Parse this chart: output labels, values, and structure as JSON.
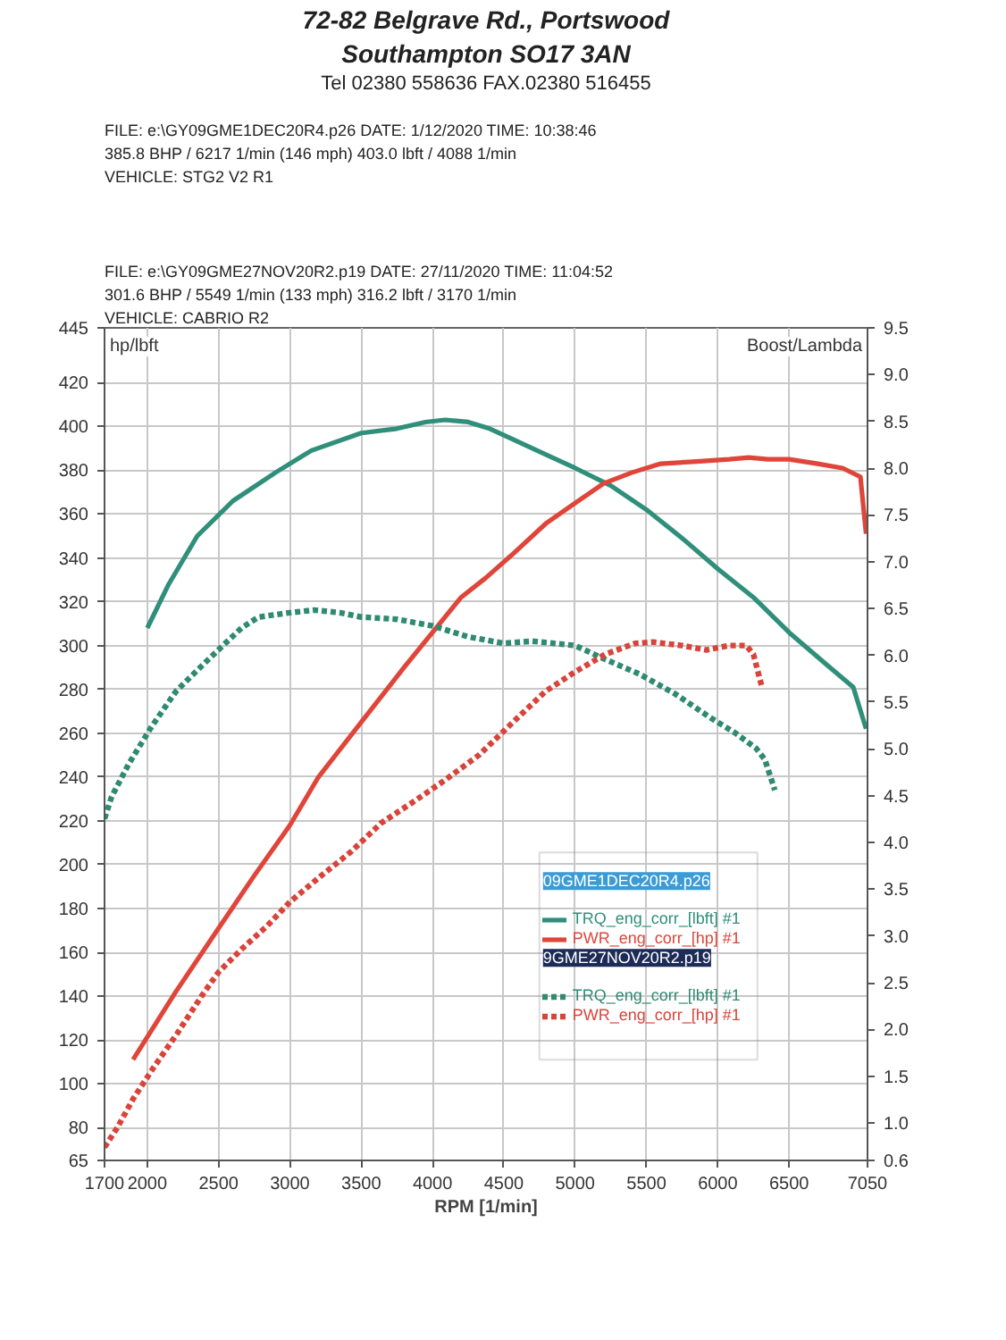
{
  "chart_data": {
    "type": "line",
    "xlabel": "RPM [1/min]",
    "ylabel": "hp/lbft",
    "y2label": "Boost/Lambda",
    "annotations": [
      "72-82 Belgrave Rd., Portswood",
      "Southampton SO17 3AN",
      "Tel 02380 558636 FAX.02380 516455",
      "FILE: e:\\GY09GME1DEC20R4.p26 DATE: 1/12/2020 TIME: 10:38:46",
      "385.8 BHP / 6217 1/min (146 mph) 403.0 lbft / 4088 1/min",
      "VEHICLE: STG2 V2 R1",
      "FILE: e:\\GY09GME27NOV20R2.p19 DATE: 27/11/2020 TIME: 11:04:52",
      "301.6 BHP / 5549 1/min (133 mph) 316.2 lbft / 3170 1/min",
      "VEHICLE: CABRIO R2",
      "09GME1DEC20R4.p26",
      "9GME27NOV20R2.p19"
    ],
    "xlim": [
      1700,
      7050
    ],
    "xticks": [
      1700,
      2000,
      2500,
      3000,
      3500,
      4000,
      4500,
      5000,
      5500,
      6000,
      6500,
      7050
    ],
    "ylim": [
      65,
      445
    ],
    "yticks": [
      65,
      80,
      100,
      120,
      140,
      160,
      180,
      200,
      220,
      240,
      260,
      280,
      300,
      320,
      340,
      360,
      380,
      400,
      420,
      445
    ],
    "y2lim": [
      0.6,
      9.5
    ],
    "y2ticks": [
      0.6,
      {
        "value": 1,
        "label": "1.0"
      },
      1.5,
      {
        "value": 2,
        "label": "2.0"
      },
      2.5,
      {
        "value": 3,
        "label": "3.0"
      },
      3.5,
      {
        "value": 4,
        "label": "4.0"
      },
      4.5,
      {
        "value": 5,
        "label": "5.0"
      },
      5.5,
      {
        "value": 6,
        "label": "6.0"
      },
      6.5,
      {
        "value": 7,
        "label": "7.0"
      },
      7.5,
      {
        "value": 8,
        "label": "8.0"
      },
      8.5,
      {
        "value": 9,
        "label": "9.0"
      },
      9.5
    ],
    "grid": true,
    "legend": "bottom right",
    "series": [
      {
        "name": "TRQ_eng_corr_[lbft] #1",
        "color": "#2f8f7a",
        "line_style": "solid",
        "x": [
          2000,
          2150,
          2350,
          2600,
          2900,
          3150,
          3500,
          3750,
          3950,
          4088,
          4250,
          4400,
          4500,
          4700,
          5000,
          5250,
          5500,
          5750,
          6000,
          6250,
          6500,
          6750,
          6950,
          7040
        ],
        "values": [
          308,
          328,
          350,
          366,
          379,
          389,
          397,
          399,
          402,
          403.0,
          402,
          399,
          396,
          390,
          381,
          373,
          362,
          349,
          335,
          322,
          306,
          292,
          281,
          262
        ]
      },
      {
        "name": "PWR_eng_corr_[hp] #1",
        "color": "#e0453a",
        "line_style": "solid",
        "x": [
          1900,
          2200,
          2500,
          2750,
          3000,
          3200,
          3500,
          3800,
          4000,
          4200,
          4375,
          4550,
          4800,
          5000,
          5200,
          5400,
          5600,
          5850,
          6080,
          6217,
          6350,
          6500,
          6700,
          6875,
          7000,
          7040
        ],
        "values": [
          111,
          142,
          171,
          195,
          218,
          240,
          265,
          290,
          306,
          322,
          331,
          341,
          356,
          365,
          374,
          379,
          383,
          384,
          385,
          385.8,
          385,
          385,
          383,
          381,
          377,
          351
        ]
      },
      {
        "name": "TRQ_eng_corr_[lbft] #1",
        "color": "#2f8a70",
        "line_style": "dotted",
        "x": [
          1700,
          1750,
          1870,
          2030,
          2200,
          2370,
          2530,
          2660,
          2780,
          3000,
          3170,
          3350,
          3500,
          3750,
          4000,
          4250,
          4500,
          4700,
          5000,
          5200,
          5450,
          5700,
          5950,
          6125,
          6270,
          6330,
          6400
        ],
        "values": [
          221,
          231,
          246,
          263,
          279,
          290,
          300,
          308,
          313,
          315,
          316.2,
          315,
          313,
          312,
          309,
          304,
          301,
          302,
          300,
          294,
          287,
          278,
          267,
          260,
          253,
          248,
          234
        ]
      },
      {
        "name": "PWR_eng_corr_[hp] #1",
        "color": "#d9443a",
        "line_style": "dotted",
        "x": [
          1700,
          1790,
          1900,
          2040,
          2210,
          2380,
          2500,
          2670,
          2840,
          3000,
          3220,
          3430,
          3640,
          3850,
          4075,
          4325,
          4580,
          4790,
          5000,
          5210,
          5420,
          5549,
          5750,
          5920,
          6080,
          6200,
          6250,
          6310
        ],
        "values": [
          71,
          80,
          93,
          107,
          123,
          140,
          151,
          162,
          172,
          183,
          195,
          206,
          219,
          228,
          238,
          250,
          266,
          279,
          288,
          296,
          301,
          301.6,
          300,
          298,
          300,
          300,
          296,
          281
        ]
      }
    ]
  }
}
